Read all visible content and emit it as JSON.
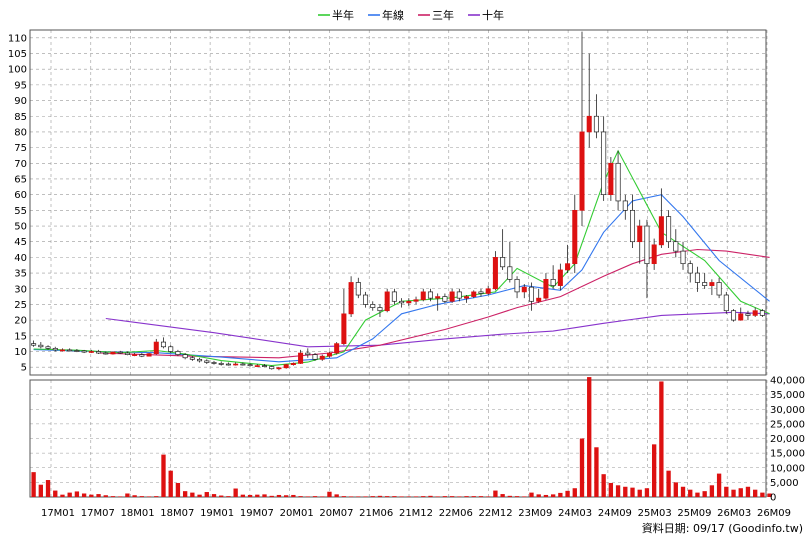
{
  "chart_data": {
    "type": "candlestick",
    "legend": [
      {
        "name": "半年",
        "color": "#33cc33"
      },
      {
        "name": "年線",
        "color": "#3377ee"
      },
      {
        "name": "三年",
        "color": "#cc2266"
      },
      {
        "name": "十年",
        "color": "#8833cc"
      }
    ],
    "x_tick_labels": [
      "17M01",
      "17M07",
      "18M01",
      "18M07",
      "19M01",
      "19M07",
      "20M01",
      "20M07",
      "21M06",
      "21M12",
      "22M06",
      "22M12",
      "23M09",
      "24M03",
      "24M09",
      "25M03",
      "25M09",
      "26M03",
      "26M09"
    ],
    "price_axis": {
      "min": 5,
      "max": 110,
      "ticks": [
        5,
        10,
        15,
        20,
        25,
        30,
        35,
        40,
        45,
        50,
        55,
        60,
        65,
        70,
        75,
        80,
        85,
        90,
        95,
        100,
        105,
        110
      ]
    },
    "volume_axis": {
      "min": 0,
      "max": 40000,
      "ticks": [
        "0",
        "5,000",
        "10,000",
        "15,000",
        "20,000",
        "25,000",
        "30,000",
        "35,000",
        "40,000"
      ]
    },
    "candles": [
      [
        12.5,
        13.5,
        11.5,
        12.0
      ],
      [
        12.0,
        13.0,
        11.0,
        11.5
      ],
      [
        11.5,
        12.0,
        10.5,
        11.0
      ],
      [
        11.0,
        11.5,
        10.0,
        10.5
      ],
      [
        10.5,
        11.0,
        10.0,
        10.5
      ],
      [
        10.5,
        11.0,
        10.0,
        10.3
      ],
      [
        10.3,
        10.8,
        9.8,
        10.2
      ],
      [
        10.2,
        10.5,
        9.5,
        9.8
      ],
      [
        9.8,
        10.5,
        9.5,
        10.0
      ],
      [
        10.0,
        10.5,
        9.2,
        9.5
      ],
      [
        9.5,
        10.0,
        9.0,
        9.2
      ],
      [
        9.2,
        10.0,
        9.0,
        9.8
      ],
      [
        9.8,
        10.2,
        9.2,
        9.5
      ],
      [
        9.5,
        10.0,
        8.8,
        9.0
      ],
      [
        9.0,
        9.5,
        8.5,
        9.0
      ],
      [
        9.0,
        9.5,
        8.2,
        8.5
      ],
      [
        8.5,
        9.5,
        8.5,
        9.3
      ],
      [
        9.3,
        14.0,
        9.0,
        13.0
      ],
      [
        13.0,
        14.5,
        11.0,
        11.5
      ],
      [
        11.5,
        12.0,
        9.5,
        10.0
      ],
      [
        10.0,
        10.5,
        8.5,
        9.0
      ],
      [
        9.0,
        9.5,
        7.5,
        8.0
      ],
      [
        8.0,
        8.5,
        7.0,
        7.5
      ],
      [
        7.5,
        8.0,
        6.5,
        7.0
      ],
      [
        7.0,
        7.5,
        6.0,
        6.5
      ],
      [
        6.5,
        7.0,
        5.8,
        6.2
      ],
      [
        6.2,
        6.8,
        5.5,
        6.0
      ],
      [
        6.0,
        6.5,
        5.5,
        5.8
      ],
      [
        5.8,
        6.5,
        5.5,
        6.0
      ],
      [
        6.0,
        6.5,
        5.5,
        5.8
      ],
      [
        5.8,
        6.2,
        5.2,
        5.5
      ],
      [
        5.5,
        6.0,
        5.0,
        5.5
      ],
      [
        5.5,
        6.0,
        5.0,
        5.2
      ],
      [
        5.2,
        5.5,
        4.2,
        4.5
      ],
      [
        4.5,
        5.0,
        4.0,
        4.8
      ],
      [
        4.8,
        6.0,
        4.5,
        5.8
      ],
      [
        5.8,
        6.5,
        5.5,
        6.2
      ],
      [
        6.2,
        10.5,
        6.0,
        9.5
      ],
      [
        9.5,
        11.0,
        8.0,
        9.0
      ],
      [
        9.0,
        9.5,
        7.0,
        7.5
      ],
      [
        7.5,
        9.0,
        7.0,
        8.5
      ],
      [
        8.5,
        10.0,
        8.0,
        9.5
      ],
      [
        9.5,
        13.0,
        9.0,
        12.5
      ],
      [
        12.5,
        30.0,
        12.0,
        22.0
      ],
      [
        22.0,
        34.0,
        21.0,
        32.0
      ],
      [
        32.0,
        33.5,
        27.0,
        28.0
      ],
      [
        28.0,
        29.0,
        24.0,
        25.0
      ],
      [
        25.0,
        26.0,
        23.0,
        24.0
      ],
      [
        24.0,
        25.0,
        21.0,
        23.0
      ],
      [
        23.0,
        30.0,
        22.5,
        29.0
      ],
      [
        29.0,
        30.0,
        25.0,
        26.0
      ],
      [
        26.0,
        27.0,
        24.0,
        25.5
      ],
      [
        25.5,
        27.0,
        24.5,
        26.0
      ],
      [
        26.0,
        27.5,
        25.0,
        26.5
      ],
      [
        26.5,
        30.0,
        26.0,
        29.0
      ],
      [
        29.0,
        30.0,
        26.0,
        27.0
      ],
      [
        27.0,
        28.5,
        23.0,
        27.5
      ],
      [
        27.5,
        28.5,
        25.5,
        26.0
      ],
      [
        26.0,
        30.0,
        25.5,
        29.0
      ],
      [
        29.0,
        30.0,
        26.0,
        27.0
      ],
      [
        27.0,
        28.0,
        25.5,
        27.5
      ],
      [
        27.5,
        29.5,
        27.0,
        29.0
      ],
      [
        29.0,
        30.0,
        27.5,
        28.5
      ],
      [
        28.5,
        31.0,
        28.0,
        30.0
      ],
      [
        30.0,
        42.0,
        29.5,
        40.0
      ],
      [
        40.0,
        49.0,
        36.0,
        37.0
      ],
      [
        37.0,
        45.0,
        32.0,
        33.0
      ],
      [
        33.0,
        34.0,
        27.0,
        29.0
      ],
      [
        29.0,
        31.5,
        27.0,
        30.5
      ],
      [
        30.5,
        32.0,
        23.0,
        26.0
      ],
      [
        26.0,
        30.0,
        25.5,
        27.0
      ],
      [
        27.0,
        35.0,
        26.5,
        33.0
      ],
      [
        33.0,
        37.5,
        30.0,
        31.0
      ],
      [
        31.0,
        38.0,
        29.5,
        36.0
      ],
      [
        36.0,
        44.0,
        35.0,
        38.0
      ],
      [
        38.0,
        60.0,
        35.0,
        55.0
      ],
      [
        55.0,
        112.0,
        50.0,
        80.0
      ],
      [
        80.0,
        105.0,
        75.0,
        85.0
      ],
      [
        85.0,
        92.0,
        78.0,
        80.0
      ],
      [
        80.0,
        85.0,
        58.0,
        60.0
      ],
      [
        60.0,
        72.0,
        58.0,
        70.0
      ],
      [
        70.0,
        74.0,
        55.0,
        58.0
      ],
      [
        58.0,
        60.0,
        52.0,
        55.0
      ],
      [
        55.0,
        60.0,
        43.0,
        45.0
      ],
      [
        45.0,
        52.0,
        38.0,
        50.0
      ],
      [
        50.0,
        52.0,
        27.0,
        38.0
      ],
      [
        38.0,
        46.0,
        36.0,
        44.0
      ],
      [
        44.0,
        62.0,
        43.0,
        53.0
      ],
      [
        53.0,
        55.0,
        43.0,
        45.0
      ],
      [
        45.0,
        49.0,
        40.0,
        42.0
      ],
      [
        42.0,
        45.0,
        36.0,
        38.0
      ],
      [
        38.0,
        39.0,
        32.0,
        35.0
      ],
      [
        35.0,
        37.0,
        29.0,
        32.0
      ],
      [
        32.0,
        35.0,
        30.0,
        31.0
      ],
      [
        31.0,
        33.0,
        28.0,
        32.0
      ],
      [
        32.0,
        33.5,
        27.0,
        28.0
      ],
      [
        28.0,
        29.0,
        22.0,
        23.0
      ],
      [
        23.0,
        23.5,
        19.5,
        20.0
      ],
      [
        20.0,
        24.0,
        19.8,
        22.0
      ],
      [
        22.0,
        23.0,
        20.0,
        21.5
      ],
      [
        21.5,
        24.0,
        21.0,
        23.0
      ],
      [
        23.0,
        23.5,
        21.0,
        21.5
      ]
    ],
    "volumes": [
      8500,
      4200,
      5800,
      2200,
      800,
      1500,
      1900,
      1200,
      800,
      1000,
      600,
      300,
      200,
      1200,
      600,
      300,
      200,
      300,
      14500,
      9000,
      4800,
      2000,
      1500,
      800,
      1700,
      1000,
      500,
      300,
      2900,
      800,
      700,
      800,
      900,
      400,
      700,
      600,
      700,
      300,
      200,
      300,
      200,
      1800,
      900,
      300,
      200,
      200,
      200,
      300,
      400,
      300,
      300,
      200,
      200,
      200,
      300,
      400,
      200,
      300,
      300,
      200,
      300,
      300,
      300,
      200,
      2200,
      1000,
      400,
      300,
      200,
      1500,
      900,
      700,
      900,
      1400,
      2100,
      3000,
      20000,
      41000,
      17000,
      7800,
      4800,
      4000,
      3500,
      3200,
      2500,
      3000,
      18000,
      39500,
      9000,
      5000,
      3500,
      2500,
      1500,
      2000,
      4000,
      8000,
      3500,
      2500,
      3000,
      3500,
      2500,
      1500,
      1200
    ],
    "ma_half": [
      [
        0,
        10.8
      ],
      [
        6,
        10.4
      ],
      [
        12,
        9.6
      ],
      [
        17,
        10.3
      ],
      [
        21,
        9.2
      ],
      [
        26,
        7.1
      ],
      [
        33,
        5.5
      ],
      [
        38,
        6.6
      ],
      [
        43,
        9.9
      ],
      [
        46,
        20.0
      ],
      [
        51,
        26.0
      ],
      [
        58,
        27.1
      ],
      [
        64,
        29.0
      ],
      [
        67,
        36.5
      ],
      [
        72,
        30.5
      ],
      [
        75,
        38.0
      ],
      [
        79,
        64.0
      ],
      [
        81,
        74.0
      ],
      [
        87,
        48.0
      ],
      [
        93,
        39.0
      ],
      [
        98,
        26.0
      ],
      [
        102,
        22.0
      ]
    ],
    "ma_year": [
      [
        0,
        10.6
      ],
      [
        10,
        9.9
      ],
      [
        17,
        9.6
      ],
      [
        26,
        8.2
      ],
      [
        34,
        6.7
      ],
      [
        42,
        8.0
      ],
      [
        47,
        14.0
      ],
      [
        51,
        22.0
      ],
      [
        56,
        25.0
      ],
      [
        63,
        28.0
      ],
      [
        68,
        31.0
      ],
      [
        73,
        29.5
      ],
      [
        76,
        36.0
      ],
      [
        79,
        48.0
      ],
      [
        83,
        58.0
      ],
      [
        87,
        60.0
      ],
      [
        90,
        53.0
      ],
      [
        95,
        39.0
      ],
      [
        102,
        26.0
      ]
    ],
    "ma_3y": [
      [
        9,
        9.5
      ],
      [
        22,
        8.5
      ],
      [
        34,
        8.0
      ],
      [
        41,
        9.5
      ],
      [
        48,
        12.0
      ],
      [
        57,
        17.0
      ],
      [
        63,
        21.0
      ],
      [
        67,
        24.0
      ],
      [
        73,
        27.5
      ],
      [
        79,
        34.0
      ],
      [
        83,
        38.0
      ],
      [
        87,
        41.0
      ],
      [
        92,
        42.5
      ],
      [
        96,
        42.0
      ],
      [
        102,
        40.0
      ]
    ],
    "ma_10y": [
      [
        10,
        20.5
      ],
      [
        25,
        16.0
      ],
      [
        38,
        11.5
      ],
      [
        48,
        12.0
      ],
      [
        57,
        14.0
      ],
      [
        65,
        15.5
      ],
      [
        72,
        16.5
      ],
      [
        79,
        19.0
      ],
      [
        87,
        21.5
      ],
      [
        97,
        22.5
      ],
      [
        102,
        22.0
      ]
    ]
  },
  "credit": "資料日期: 09/17 (Goodinfo.tw)",
  "colors": {
    "up": "#dd1111",
    "down": "#222222",
    "volume": "#dd1111",
    "grid": "#999999"
  }
}
